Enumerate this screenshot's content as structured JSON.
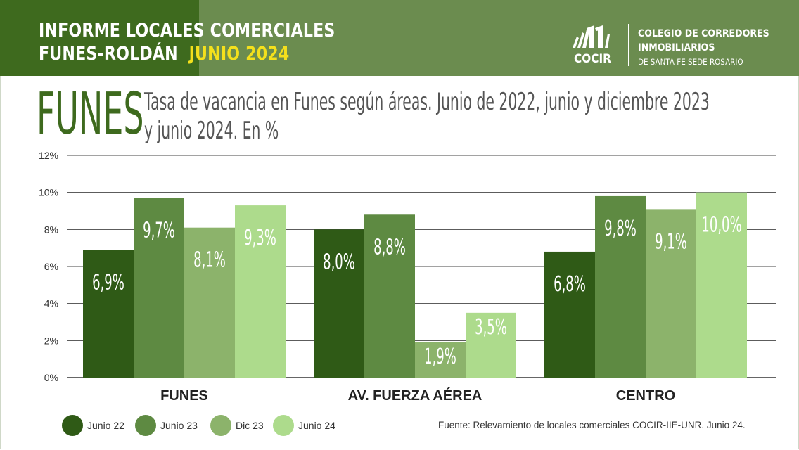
{
  "header": {
    "line1": "INFORME LOCALES COMERCIALES",
    "line2_prefix": "FUNES-ROLDÁN",
    "line2_highlight": "JUNIO 2024",
    "logo_text": "COCIR",
    "org_line1": "COLEGIO DE CORREDORES",
    "org_line2": "INMOBILIARIOS",
    "org_line3": "DE SANTA FE SEDE ROSARIO"
  },
  "big_title": "FUNES",
  "subtitle_line1": "Tasa de vacancia en Funes según áreas. Junio de 2022, junio y diciembre 2023",
  "subtitle_line2": "y junio 2024. En %",
  "colors": {
    "header_dark": "#3e6a1e",
    "header_main": "#6b8c4f",
    "highlight": "#f4e01c",
    "series": [
      "#2f5a16",
      "#5e8a42",
      "#8cb36b",
      "#addb8c"
    ]
  },
  "source": "Fuente: Relevamiento de locales comerciales COCIR-IIE-UNR. Junio 24.",
  "chart_data": {
    "type": "bar",
    "categories": [
      "FUNES",
      "AV. FUERZA AÉREA",
      "CENTRO"
    ],
    "series": [
      {
        "name": "Junio 22",
        "values": [
          6.9,
          8.0,
          6.8
        ],
        "labels": [
          "6,9%",
          "8,0%",
          "6,8%"
        ]
      },
      {
        "name": "Junio 23",
        "values": [
          9.7,
          8.8,
          9.8
        ],
        "labels": [
          "9,7%",
          "8,8%",
          "9,8%"
        ]
      },
      {
        "name": "Dic 23",
        "values": [
          8.1,
          1.9,
          9.1
        ],
        "labels": [
          "8,1%",
          "1,9%",
          "9,1%"
        ]
      },
      {
        "name": "Junio 24",
        "values": [
          9.3,
          3.5,
          10.0
        ],
        "labels": [
          "9,3%",
          "3,5%",
          "10,0%"
        ]
      }
    ],
    "y_ticks": [
      "0%",
      "2%",
      "4%",
      "6%",
      "8%",
      "10%",
      "12%"
    ],
    "ylim": [
      0,
      12
    ],
    "grid": true,
    "legend_position": "bottom-left"
  }
}
